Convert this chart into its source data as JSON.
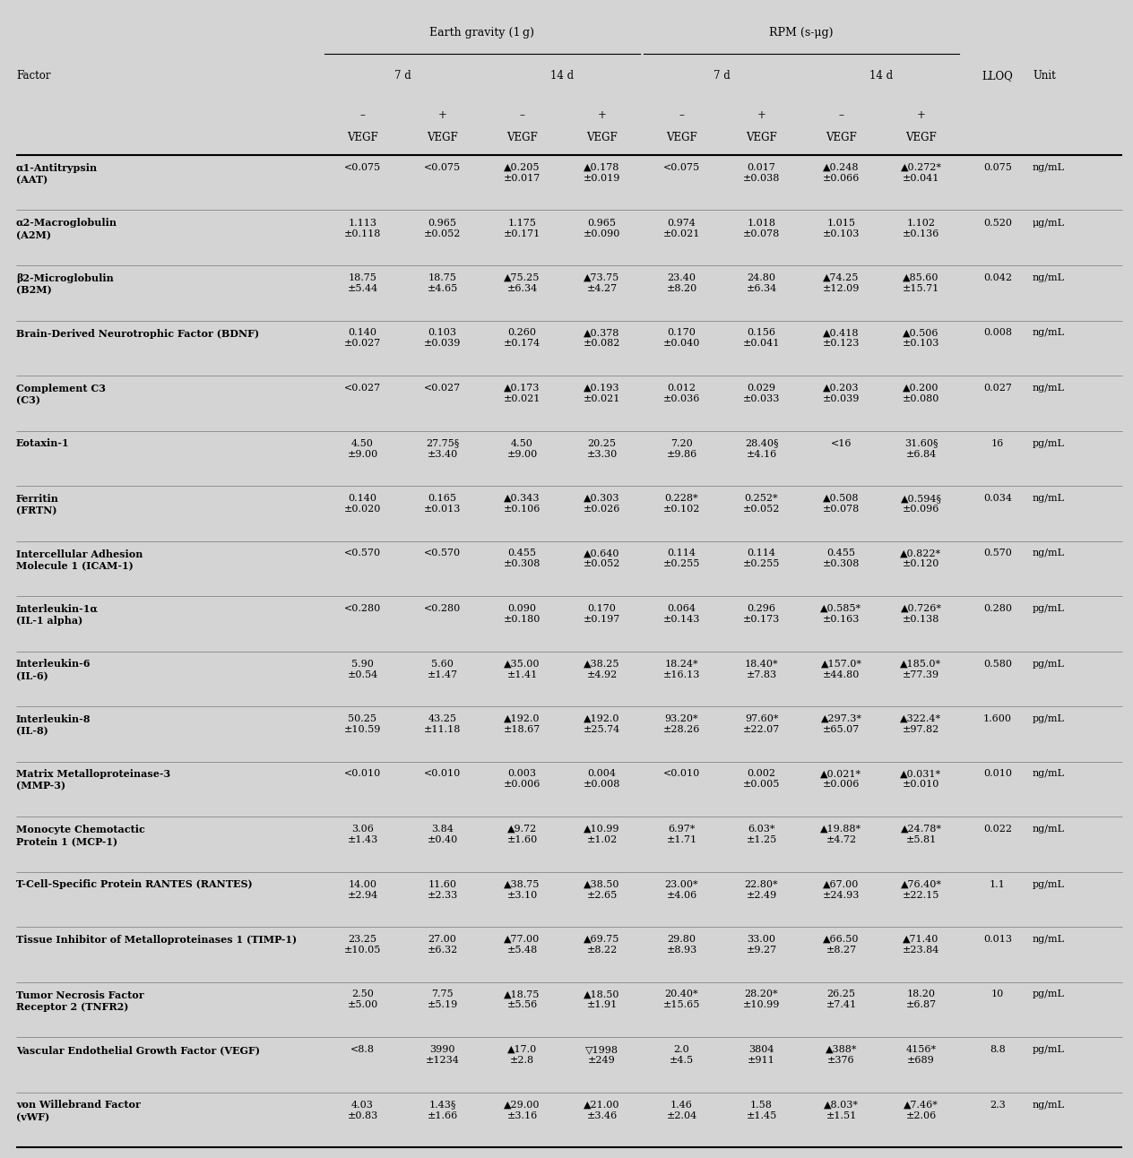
{
  "bg_color": "#d4d4d4",
  "figsize": [
    12.64,
    12.92
  ],
  "dpi": 100,
  "group1_label": "Earth gravity (1 g)",
  "group2_label": "RPM (s-μg)",
  "rows": [
    {
      "factor": "α1-Antitrypsin\n(AAT)",
      "v": [
        "<0.075",
        "<0.075",
        "▲0.205\n±0.017",
        "▲0.178\n±0.019",
        "<0.075",
        "0.017\n±0.038",
        "▲0.248\n±0.066",
        "▲0.272*\n±0.041"
      ],
      "lloq": "0.075",
      "unit": "ng/mL"
    },
    {
      "factor": "α2-Macroglobulin\n(A2M)",
      "v": [
        "1.113\n±0.118",
        "0.965\n±0.052",
        "1.175\n±0.171",
        "0.965\n±0.090",
        "0.974\n±0.021",
        "1.018\n±0.078",
        "1.015\n±0.103",
        "1.102\n±0.136"
      ],
      "lloq": "0.520",
      "unit": "μg/mL"
    },
    {
      "factor": "β2-Microglobulin\n(B2M)",
      "v": [
        "18.75\n±5.44",
        "18.75\n±4.65",
        "▲75.25\n±6.34",
        "▲73.75\n±4.27",
        "23.40\n±8.20",
        "24.80\n±6.34",
        "▲74.25\n±12.09",
        "▲85.60\n±15.71"
      ],
      "lloq": "0.042",
      "unit": "ng/mL"
    },
    {
      "factor": "Brain-Derived Neurotrophic Factor (BDNF)",
      "v": [
        "0.140\n±0.027",
        "0.103\n±0.039",
        "0.260\n±0.174",
        "▲0.378\n±0.082",
        "0.170\n±0.040",
        "0.156\n±0.041",
        "▲0.418\n±0.123",
        "▲0.506\n±0.103"
      ],
      "lloq": "0.008",
      "unit": "ng/mL"
    },
    {
      "factor": "Complement C3\n(C3)",
      "v": [
        "<0.027",
        "<0.027",
        "▲0.173\n±0.021",
        "▲0.193\n±0.021",
        "0.012\n±0.036",
        "0.029\n±0.033",
        "▲0.203\n±0.039",
        "▲0.200\n±0.080"
      ],
      "lloq": "0.027",
      "unit": "ng/mL"
    },
    {
      "factor": "Eotaxin-1",
      "v": [
        "4.50\n±9.00",
        "27.75§\n±3.40",
        "4.50\n±9.00",
        "20.25\n±3.30",
        "7.20\n±9.86",
        "28.40§\n±4.16",
        "<16",
        "31.60§\n±6.84"
      ],
      "lloq": "16",
      "unit": "pg/mL"
    },
    {
      "factor": "Ferritin\n(FRTN)",
      "v": [
        "0.140\n±0.020",
        "0.165\n±0.013",
        "▲0.343\n±0.106",
        "▲0.303\n±0.026",
        "0.228*\n±0.102",
        "0.252*\n±0.052",
        "▲0.508\n±0.078",
        "▲0.594§\n±0.096"
      ],
      "lloq": "0.034",
      "unit": "ng/mL"
    },
    {
      "factor": "Intercellular Adhesion\nMolecule 1 (ICAM-1)",
      "v": [
        "<0.570",
        "<0.570",
        "0.455\n±0.308",
        "▲0.640\n±0.052",
        "0.114\n±0.255",
        "0.114\n±0.255",
        "0.455\n±0.308",
        "▲0.822*\n±0.120"
      ],
      "lloq": "0.570",
      "unit": "ng/mL"
    },
    {
      "factor": "Interleukin-1α\n(IL-1 alpha)",
      "v": [
        "<0.280",
        "<0.280",
        "0.090\n±0.180",
        "0.170\n±0.197",
        "0.064\n±0.143",
        "0.296\n±0.173",
        "▲0.585*\n±0.163",
        "▲0.726*\n±0.138"
      ],
      "lloq": "0.280",
      "unit": "pg/mL"
    },
    {
      "factor": "Interleukin-6\n(IL-6)",
      "v": [
        "5.90\n±0.54",
        "5.60\n±1.47",
        "▲35.00\n±1.41",
        "▲38.25\n±4.92",
        "18.24*\n±16.13",
        "18.40*\n±7.83",
        "▲157.0*\n±44.80",
        "▲185.0*\n±77.39"
      ],
      "lloq": "0.580",
      "unit": "pg/mL"
    },
    {
      "factor": "Interleukin-8\n(IL-8)",
      "v": [
        "50.25\n±10.59",
        "43.25\n±11.18",
        "▲192.0\n±18.67",
        "▲192.0\n±25.74",
        "93.20*\n±28.26",
        "97.60*\n±22.07",
        "▲297.3*\n±65.07",
        "▲322.4*\n±97.82"
      ],
      "lloq": "1.600",
      "unit": "pg/mL"
    },
    {
      "factor": "Matrix Metalloproteinase-3\n(MMP-3)",
      "v": [
        "<0.010",
        "<0.010",
        "0.003\n±0.006",
        "0.004\n±0.008",
        "<0.010",
        "0.002\n±0.005",
        "▲0.021*\n±0.006",
        "▲0.031*\n±0.010"
      ],
      "lloq": "0.010",
      "unit": "ng/mL"
    },
    {
      "factor": "Monocyte Chemotactic\nProtein 1 (MCP-1)",
      "v": [
        "3.06\n±1.43",
        "3.84\n±0.40",
        "▲9.72\n±1.60",
        "▲10.99\n±1.02",
        "6.97*\n±1.71",
        "6.03*\n±1.25",
        "▲19.88*\n±4.72",
        "▲24.78*\n±5.81"
      ],
      "lloq": "0.022",
      "unit": "ng/mL"
    },
    {
      "factor": "T-Cell-Specific Protein RANTES (RANTES)",
      "v": [
        "14.00\n±2.94",
        "11.60\n±2.33",
        "▲38.75\n±3.10",
        "▲38.50\n±2.65",
        "23.00*\n±4.06",
        "22.80*\n±2.49",
        "▲67.00\n±24.93",
        "▲76.40*\n±22.15"
      ],
      "lloq": "1.1",
      "unit": "pg/mL"
    },
    {
      "factor": "Tissue Inhibitor of Metalloproteinases 1 (TIMP-1)",
      "v": [
        "23.25\n±10.05",
        "27.00\n±6.32",
        "▲77.00\n±5.48",
        "▲69.75\n±8.22",
        "29.80\n±8.93",
        "33.00\n±9.27",
        "▲66.50\n±8.27",
        "▲71.40\n±23.84"
      ],
      "lloq": "0.013",
      "unit": "ng/mL"
    },
    {
      "factor": "Tumor Necrosis Factor\nReceptor 2 (TNFR2)",
      "v": [
        "2.50\n±5.00",
        "7.75\n±5.19",
        "▲18.75\n±5.56",
        "▲18.50\n±1.91",
        "20.40*\n±15.65",
        "28.20*\n±10.99",
        "26.25\n±7.41",
        "18.20\n±6.87"
      ],
      "lloq": "10",
      "unit": "pg/mL"
    },
    {
      "factor": "Vascular Endothelial Growth Factor (VEGF)",
      "v": [
        "<8.8",
        "3990\n±1234",
        "▲17.0\n±2.8",
        "▽1998\n±249",
        "2.0\n±4.5",
        "3804\n±911",
        "▲388*\n±376",
        "4156*\n±689"
      ],
      "lloq": "8.8",
      "unit": "pg/mL"
    },
    {
      "factor": "von Willebrand Factor\n(vWF)",
      "v": [
        "4.03\n±0.83",
        "1.43§\n±1.66",
        "▲29.00\n±3.16",
        "▲21.00\n±3.46",
        "1.46\n±2.04",
        "1.58\n±1.45",
        "▲8.03*\n±1.51",
        "▲7.46*\n±2.06"
      ],
      "lloq": "2.3",
      "unit": "ng/mL"
    }
  ]
}
